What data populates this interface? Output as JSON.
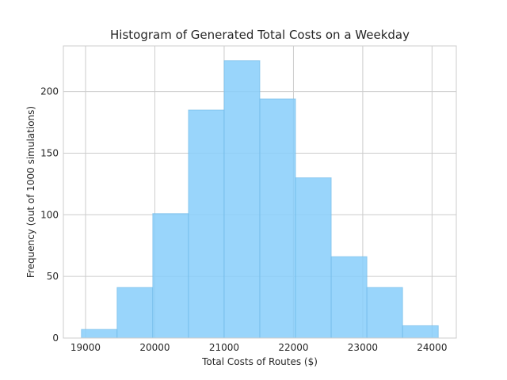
{
  "chart_data": {
    "type": "bar",
    "title": "Histogram of Generated Total Costs on a Weekday",
    "xlabel": "Total Costs of Routes ($)",
    "ylabel": "Frequency (out of 1000 simulations)",
    "bins": [
      {
        "start": 18940,
        "end": 19455,
        "value": 7
      },
      {
        "start": 19455,
        "end": 19970,
        "value": 41
      },
      {
        "start": 19970,
        "end": 20485,
        "value": 101
      },
      {
        "start": 20485,
        "end": 21000,
        "value": 185
      },
      {
        "start": 21000,
        "end": 21515,
        "value": 225
      },
      {
        "start": 21515,
        "end": 22030,
        "value": 194
      },
      {
        "start": 22030,
        "end": 22545,
        "value": 130
      },
      {
        "start": 22545,
        "end": 23060,
        "value": 66
      },
      {
        "start": 23060,
        "end": 23575,
        "value": 41
      },
      {
        "start": 23575,
        "end": 24090,
        "value": 10
      }
    ],
    "xlim": [
      18680,
      24350
    ],
    "ylim": [
      0,
      237
    ],
    "xticks": [
      19000,
      20000,
      21000,
      22000,
      23000,
      24000
    ],
    "yticks": [
      0,
      50,
      100,
      150,
      200
    ],
    "grid": true,
    "bar_color": "#87cefa",
    "bar_edge_color": "#6cb8e6",
    "bar_alpha": 0.85
  }
}
